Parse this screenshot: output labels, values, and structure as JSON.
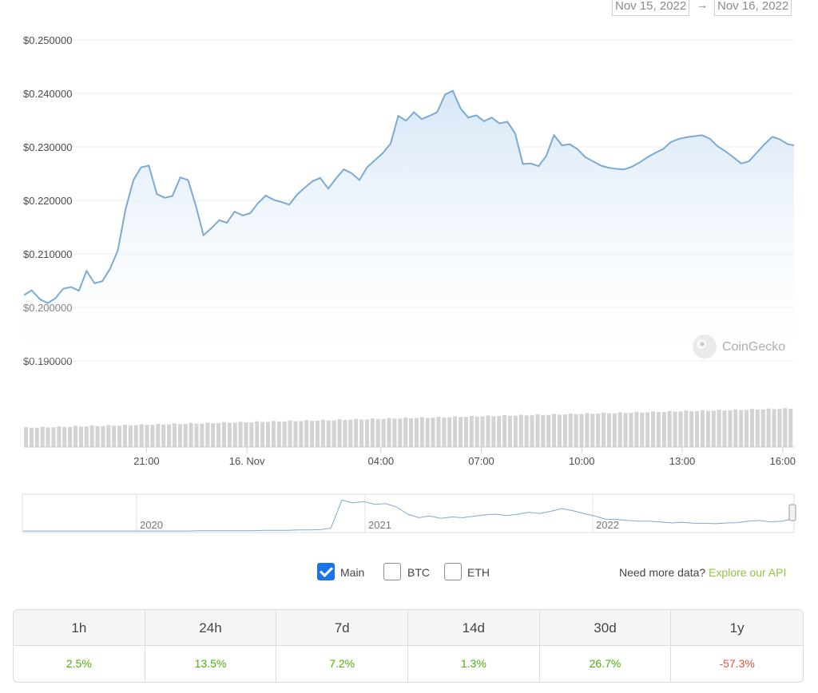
{
  "date_range": {
    "from": "Nov 15, 2022",
    "arrow": "→",
    "to": "Nov 16, 2022"
  },
  "watermark": "CoinGecko",
  "colors": {
    "line": "#7baad5",
    "positive": "#4eaf0a",
    "negative": "#e15241",
    "checkbox": "#1a73e8",
    "link": "#8dc63f"
  },
  "chart_data": [
    {
      "type": "area",
      "y_ticks": [
        "$0.250000",
        "$0.240000",
        "$0.230000",
        "$0.220000",
        "$0.210000",
        "$0.200000",
        "$0.190000"
      ],
      "ylim": [
        0.19,
        0.25
      ],
      "x_ticks": [
        {
          "label": "21:00",
          "h": 3.66
        },
        {
          "label": "16. Nov",
          "h": 6.66
        },
        {
          "label": "04:00",
          "h": 10.66
        },
        {
          "label": "07:00",
          "h": 13.66
        },
        {
          "label": "10:00",
          "h": 16.66
        },
        {
          "label": "13:00",
          "h": 19.66
        },
        {
          "label": "16:00",
          "h": 22.66
        }
      ],
      "xlim": [
        0,
        23
      ],
      "grid": true,
      "series": [
        {
          "x": [
            0,
            0.23,
            0.48,
            0.71,
            0.94,
            1.17,
            1.41,
            1.64,
            1.87,
            2.11,
            2.34,
            2.57,
            2.8,
            3.04,
            3.27,
            3.5,
            3.73,
            3.97,
            4.2,
            4.43,
            4.67,
            4.9,
            5.13,
            5.36,
            5.6,
            5.83,
            6.06,
            6.29,
            6.53,
            6.76,
            6.99,
            7.22,
            7.46,
            7.69,
            7.92,
            8.16,
            8.39,
            8.62,
            8.85,
            9.09,
            9.32,
            9.55,
            9.78,
            10.02,
            10.25,
            10.48,
            10.71,
            10.95,
            11.18,
            11.41,
            11.65,
            11.88,
            12.11,
            12.34,
            12.58,
            12.81,
            13.04,
            13.27,
            13.51,
            13.74,
            13.97,
            14.2,
            14.44,
            14.67,
            14.9,
            15.14,
            15.37,
            15.6,
            15.83,
            16.07,
            16.3,
            16.53,
            16.76,
            17.0,
            17.23,
            17.46,
            17.69,
            17.93,
            18.16,
            18.39,
            18.63,
            18.86,
            19.09,
            19.32,
            19.56,
            19.79,
            20.02,
            20.25,
            20.49,
            20.72,
            20.95,
            21.18,
            21.42,
            21.65,
            21.88,
            22.12,
            22.35,
            22.58,
            22.81,
            23.0
          ],
          "y": [
            0.2023,
            0.2032,
            0.2015,
            0.2008,
            0.2017,
            0.2035,
            0.2038,
            0.2031,
            0.2068,
            0.2045,
            0.2049,
            0.2072,
            0.2106,
            0.2185,
            0.2238,
            0.2262,
            0.2265,
            0.2212,
            0.2205,
            0.2208,
            0.2243,
            0.2238,
            0.2191,
            0.2135,
            0.2148,
            0.2163,
            0.2158,
            0.2179,
            0.2172,
            0.2176,
            0.2195,
            0.2209,
            0.2201,
            0.2197,
            0.2192,
            0.2211,
            0.2224,
            0.2236,
            0.2242,
            0.2222,
            0.2241,
            0.2258,
            0.2251,
            0.2238,
            0.2262,
            0.2275,
            0.2288,
            0.2306,
            0.2358,
            0.2349,
            0.2365,
            0.2352,
            0.2358,
            0.2365,
            0.2398,
            0.2405,
            0.2372,
            0.2355,
            0.2359,
            0.2348,
            0.2355,
            0.2344,
            0.2347,
            0.2325,
            0.2268,
            0.2269,
            0.2264,
            0.2283,
            0.2322,
            0.2303,
            0.2305,
            0.2296,
            0.2281,
            0.2273,
            0.2265,
            0.2261,
            0.2259,
            0.2258,
            0.2263,
            0.2271,
            0.2281,
            0.2289,
            0.2296,
            0.2309,
            0.2315,
            0.2318,
            0.232,
            0.2322,
            0.2315,
            0.2301,
            0.2292,
            0.2281,
            0.2269,
            0.2273,
            0.2289,
            0.2305,
            0.2319,
            0.2314,
            0.2305,
            0.2303
          ]
        }
      ],
      "volume_bars": 140
    },
    {
      "type": "line",
      "x_ticks": [
        "2020",
        "2021",
        "2022"
      ],
      "series": [
        {
          "values": [
            0.02,
            0.02,
            0.02,
            0.02,
            0.02,
            0.02,
            0.02,
            0.02,
            0.02,
            0.02,
            0.02,
            0.02,
            0.02,
            0.02,
            0.02,
            0.02,
            0.03,
            0.03,
            0.03,
            0.03,
            0.03,
            0.03,
            0.04,
            0.04,
            0.04,
            0.05,
            0.05,
            0.06,
            0.1,
            0.9,
            0.82,
            0.86,
            0.78,
            0.8,
            0.7,
            0.5,
            0.4,
            0.45,
            0.38,
            0.42,
            0.4,
            0.44,
            0.48,
            0.5,
            0.46,
            0.5,
            0.55,
            0.52,
            0.58,
            0.66,
            0.6,
            0.52,
            0.45,
            0.36,
            0.35,
            0.32,
            0.3,
            0.3,
            0.28,
            0.25,
            0.27,
            0.24,
            0.24,
            0.23,
            0.25,
            0.26,
            0.3,
            0.32,
            0.28,
            0.3,
            0.36
          ]
        }
      ]
    }
  ],
  "controls": {
    "main_label": "Main",
    "btc_label": "BTC",
    "eth_label": "ETH",
    "api_prompt": "Need more data?",
    "api_link": "Explore our API"
  },
  "performance": [
    {
      "period": "1h",
      "change": "2.5%"
    },
    {
      "period": "24h",
      "change": "13.5%"
    },
    {
      "period": "7d",
      "change": "7.2%"
    },
    {
      "period": "14d",
      "change": "1.3%"
    },
    {
      "period": "30d",
      "change": "26.7%"
    },
    {
      "period": "1y",
      "change": "-57.3%"
    }
  ]
}
